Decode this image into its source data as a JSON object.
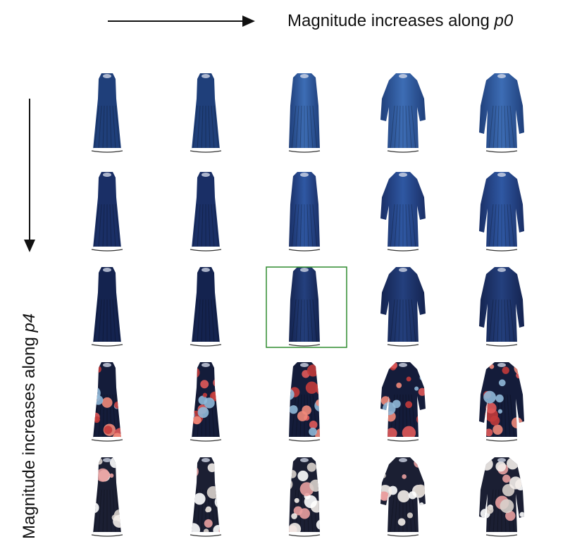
{
  "header": {
    "p0_label_prefix": "Magnitude increases along ",
    "p0_label_var": "p0"
  },
  "side": {
    "p4_label_prefix": "Magnitude increases along ",
    "p4_label_var": "p4"
  },
  "grid": {
    "rows": 5,
    "cols": 5,
    "highlighted": {
      "row": 2,
      "col": 2,
      "color": "#2e8b2e"
    },
    "row_palettes": [
      {
        "base": "#1f3f7a",
        "light": "#3d6db5",
        "pattern": "none"
      },
      {
        "base": "#1a2f66",
        "light": "#2f58a3",
        "pattern": "none"
      },
      {
        "base": "#14234f",
        "light": "#24407e",
        "pattern": "none"
      },
      {
        "base": "#141c3a",
        "light": "#e06a6a",
        "pattern": "red-floral"
      },
      {
        "base": "#1b1f33",
        "light": "#f2ece8",
        "pattern": "white-floral"
      }
    ],
    "col_styles": [
      "sleeveless",
      "sleeveless",
      "collar",
      "puff-sleeve",
      "long-sleeve"
    ]
  },
  "colors": {
    "arrow": "#111111",
    "hem": "#ffffff"
  }
}
